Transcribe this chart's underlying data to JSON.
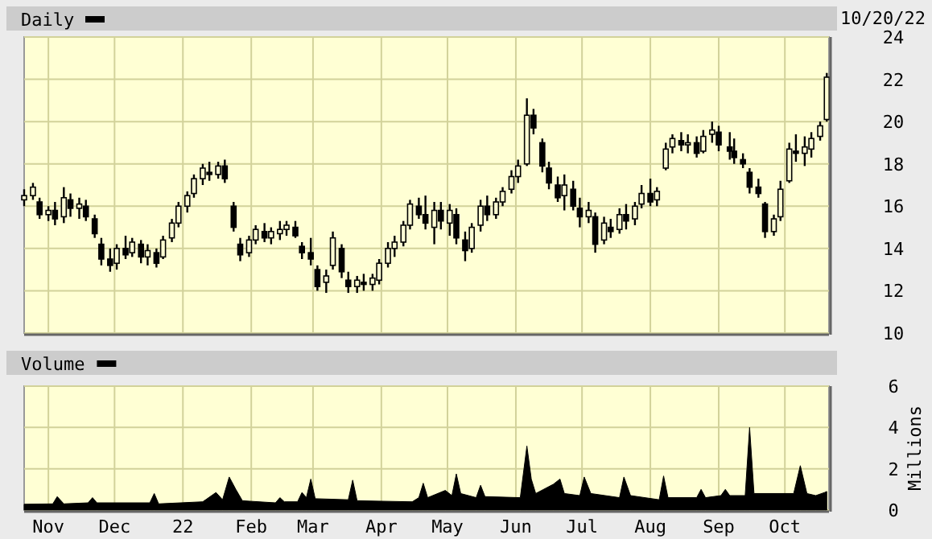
{
  "chart_data": [
    {
      "type": "candlestick",
      "annotations": [
        "10/20/22"
      ],
      "legend": "top left",
      "grid": true,
      "tick_labels": "y",
      "xlim": [
        "2021-10-21",
        "2022-10-21"
      ],
      "xticks": [
        {
          "value": "2021-11-01",
          "label": null
        },
        {
          "value": "2021-12-01",
          "label": null
        },
        {
          "value": "2022-01-01",
          "label": null
        },
        {
          "value": "2022-02-01",
          "label": null
        },
        {
          "value": "2022-03-01",
          "label": null
        },
        {
          "value": "2022-04-01",
          "label": null
        },
        {
          "value": "2022-05-01",
          "label": null
        },
        {
          "value": "2022-06-01",
          "label": null
        },
        {
          "value": "2022-07-01",
          "label": null
        },
        {
          "value": "2022-08-01",
          "label": null
        },
        {
          "value": "2022-09-01",
          "label": null
        },
        {
          "value": "2022-10-01",
          "label": null
        }
      ],
      "ylim": [
        10,
        24
      ],
      "yticks": [
        10,
        12,
        14,
        16,
        18,
        20,
        22,
        24
      ],
      "series": [
        {
          "name": "Daily",
          "color": "#000000",
          "x": [
            "2021-10-21",
            "2021-10-25",
            "2021-10-28",
            "2021-11-01",
            "2021-11-04",
            "2021-11-08",
            "2021-11-11",
            "2021-11-15",
            "2021-11-18",
            "2021-11-22",
            "2021-11-25",
            "2021-11-29",
            "2021-12-02",
            "2021-12-06",
            "2021-12-09",
            "2021-12-13",
            "2021-12-16",
            "2021-12-20",
            "2021-12-23",
            "2021-12-27",
            "2021-12-30",
            "2022-01-03",
            "2022-01-06",
            "2022-01-10",
            "2022-01-13",
            "2022-01-17",
            "2022-01-20",
            "2022-01-24",
            "2022-01-27",
            "2022-01-31",
            "2022-02-03",
            "2022-02-07",
            "2022-02-10",
            "2022-02-14",
            "2022-02-17",
            "2022-02-21",
            "2022-02-24",
            "2022-02-28",
            "2022-03-03",
            "2022-03-07",
            "2022-03-10",
            "2022-03-14",
            "2022-03-17",
            "2022-03-21",
            "2022-03-24",
            "2022-03-28",
            "2022-03-31",
            "2022-04-04",
            "2022-04-07",
            "2022-04-11",
            "2022-04-14",
            "2022-04-18",
            "2022-04-21",
            "2022-04-25",
            "2022-04-28",
            "2022-05-02",
            "2022-05-05",
            "2022-05-09",
            "2022-05-12",
            "2022-05-16",
            "2022-05-19",
            "2022-05-23",
            "2022-05-26",
            "2022-05-30",
            "2022-06-02",
            "2022-06-06",
            "2022-06-09",
            "2022-06-13",
            "2022-06-16",
            "2022-06-20",
            "2022-06-23",
            "2022-06-27",
            "2022-06-30",
            "2022-07-04",
            "2022-07-07",
            "2022-07-11",
            "2022-07-14",
            "2022-07-18",
            "2022-07-21",
            "2022-07-25",
            "2022-07-28",
            "2022-08-01",
            "2022-08-04",
            "2022-08-08",
            "2022-08-11",
            "2022-08-15",
            "2022-08-18",
            "2022-08-22",
            "2022-08-25",
            "2022-08-29",
            "2022-09-01",
            "2022-09-06",
            "2022-09-08",
            "2022-09-12",
            "2022-09-15",
            "2022-09-19",
            "2022-09-22",
            "2022-09-26",
            "2022-09-29",
            "2022-10-03",
            "2022-10-06",
            "2022-10-10",
            "2022-10-13",
            "2022-10-17",
            "2022-10-20"
          ],
          "ohlc": [
            [
              16.3,
              16.8,
              16.0,
              16.5
            ],
            [
              16.5,
              17.1,
              16.3,
              16.9
            ],
            [
              16.2,
              16.4,
              15.4,
              15.6
            ],
            [
              15.6,
              16.0,
              15.3,
              15.8
            ],
            [
              15.8,
              16.2,
              15.1,
              15.4
            ],
            [
              15.5,
              16.9,
              15.2,
              16.4
            ],
            [
              16.3,
              16.6,
              15.5,
              15.9
            ],
            [
              15.9,
              16.4,
              15.4,
              16.1
            ],
            [
              16.0,
              16.3,
              15.3,
              15.5
            ],
            [
              15.4,
              15.6,
              14.5,
              14.7
            ],
            [
              14.2,
              14.5,
              13.2,
              13.5
            ],
            [
              13.5,
              14.0,
              12.9,
              13.2
            ],
            [
              13.3,
              14.2,
              13.0,
              14.0
            ],
            [
              14.0,
              14.6,
              13.5,
              13.7
            ],
            [
              13.8,
              14.5,
              13.6,
              14.3
            ],
            [
              14.2,
              14.4,
              13.3,
              13.6
            ],
            [
              13.6,
              14.2,
              13.2,
              13.9
            ],
            [
              13.8,
              14.0,
              13.1,
              13.3
            ],
            [
              13.6,
              14.6,
              13.5,
              14.4
            ],
            [
              14.5,
              15.4,
              14.3,
              15.2
            ],
            [
              15.2,
              16.2,
              15.0,
              16.0
            ],
            [
              16.0,
              16.7,
              15.7,
              16.5
            ],
            [
              16.6,
              17.5,
              16.4,
              17.3
            ],
            [
              17.3,
              18.0,
              17.0,
              17.8
            ],
            [
              17.6,
              18.1,
              17.2,
              17.5
            ],
            [
              17.5,
              18.1,
              17.3,
              17.9
            ],
            [
              17.9,
              18.2,
              17.1,
              17.3
            ],
            [
              16.0,
              16.2,
              14.8,
              15.0
            ],
            [
              14.2,
              14.5,
              13.4,
              13.7
            ],
            [
              13.8,
              14.6,
              13.6,
              14.4
            ],
            [
              14.4,
              15.1,
              14.2,
              14.9
            ],
            [
              14.8,
              15.2,
              14.3,
              14.5
            ],
            [
              14.5,
              15.0,
              14.2,
              14.8
            ],
            [
              14.7,
              15.3,
              14.4,
              14.9
            ],
            [
              14.9,
              15.3,
              14.6,
              15.1
            ],
            [
              15.0,
              15.3,
              14.5,
              14.6
            ],
            [
              14.1,
              14.3,
              13.5,
              13.8
            ],
            [
              13.8,
              14.5,
              13.2,
              13.5
            ],
            [
              13.0,
              13.2,
              12.0,
              12.2
            ],
            [
              12.4,
              13.0,
              11.9,
              12.7
            ],
            [
              13.2,
              14.8,
              13.0,
              14.5
            ],
            [
              14.0,
              14.2,
              12.6,
              12.9
            ],
            [
              12.5,
              12.9,
              11.9,
              12.2
            ],
            [
              12.2,
              12.7,
              11.9,
              12.5
            ],
            [
              12.4,
              12.8,
              12.0,
              12.3
            ],
            [
              12.3,
              12.8,
              12.0,
              12.6
            ],
            [
              12.5,
              13.5,
              12.3,
              13.3
            ],
            [
              13.3,
              14.3,
              13.1,
              14.0
            ],
            [
              14.0,
              14.6,
              13.6,
              14.3
            ],
            [
              14.3,
              15.3,
              14.1,
              15.1
            ],
            [
              15.1,
              16.3,
              14.9,
              16.1
            ],
            [
              16.0,
              16.4,
              15.4,
              15.6
            ],
            [
              15.6,
              16.5,
              14.9,
              15.2
            ],
            [
              15.0,
              16.2,
              14.2,
              15.8
            ],
            [
              15.8,
              16.2,
              14.9,
              15.3
            ],
            [
              15.2,
              16.1,
              14.6,
              15.8
            ],
            [
              15.6,
              15.9,
              14.2,
              14.5
            ],
            [
              14.4,
              14.8,
              13.4,
              13.9
            ],
            [
              14.0,
              15.2,
              13.8,
              15.0
            ],
            [
              15.1,
              16.3,
              14.8,
              16.0
            ],
            [
              16.0,
              16.5,
              15.3,
              15.6
            ],
            [
              15.6,
              16.4,
              15.4,
              16.2
            ],
            [
              16.2,
              16.9,
              16.0,
              16.7
            ],
            [
              16.8,
              17.7,
              16.6,
              17.4
            ],
            [
              17.4,
              18.2,
              17.1,
              17.9
            ],
            [
              18.0,
              21.1,
              17.9,
              20.3
            ],
            [
              20.3,
              20.6,
              19.4,
              19.7
            ],
            [
              19.0,
              19.2,
              17.6,
              17.9
            ],
            [
              17.8,
              18.1,
              16.8,
              17.1
            ],
            [
              17.0,
              17.4,
              16.2,
              16.4
            ],
            [
              16.5,
              17.5,
              15.8,
              17.0
            ],
            [
              16.8,
              17.2,
              15.8,
              16.0
            ],
            [
              15.9,
              16.4,
              15.0,
              15.5
            ],
            [
              15.5,
              16.2,
              15.2,
              15.8
            ],
            [
              15.5,
              15.7,
              13.8,
              14.2
            ],
            [
              14.4,
              15.5,
              14.2,
              15.2
            ],
            [
              15.0,
              15.4,
              14.5,
              14.8
            ],
            [
              14.9,
              15.9,
              14.7,
              15.6
            ],
            [
              15.6,
              16.1,
              14.9,
              15.3
            ],
            [
              15.4,
              16.2,
              15.1,
              16.0
            ],
            [
              16.1,
              17.0,
              15.9,
              16.6
            ],
            [
              16.6,
              17.3,
              16.0,
              16.2
            ],
            [
              16.3,
              16.9,
              16.0,
              16.7
            ],
            [
              17.8,
              19.0,
              17.7,
              18.7
            ],
            [
              18.8,
              19.4,
              18.5,
              19.2
            ],
            [
              19.1,
              19.5,
              18.6,
              18.9
            ],
            [
              18.9,
              19.4,
              18.5,
              19.0
            ],
            [
              19.0,
              19.3,
              18.3,
              18.5
            ],
            [
              18.6,
              19.6,
              18.5,
              19.3
            ],
            [
              19.4,
              20.0,
              19.0,
              19.6
            ],
            [
              19.5,
              19.8,
              18.6,
              18.9
            ],
            [
              18.8,
              19.5,
              18.2,
              18.6
            ],
            [
              18.6,
              19.2,
              18.0,
              18.3
            ],
            [
              18.2,
              18.5,
              17.8,
              18.0
            ],
            [
              17.6,
              17.8,
              16.6,
              16.9
            ],
            [
              16.9,
              17.3,
              16.4,
              16.6
            ],
            [
              16.1,
              16.2,
              14.5,
              14.8
            ],
            [
              14.8,
              15.6,
              14.6,
              15.4
            ],
            [
              15.5,
              17.2,
              15.3,
              16.8
            ],
            [
              17.2,
              19.0,
              17.1,
              18.7
            ],
            [
              18.6,
              19.4,
              18.1,
              18.5
            ],
            [
              18.5,
              19.3,
              17.9,
              18.8
            ],
            [
              18.7,
              19.5,
              18.3,
              19.2
            ],
            [
              19.3,
              20.0,
              19.1,
              19.8
            ],
            [
              20.1,
              22.3,
              20.0,
              22.1
            ]
          ]
        }
      ]
    },
    {
      "type": "area",
      "ylabel": "Millions",
      "legend": "top left",
      "grid": true,
      "xlim": [
        "2021-10-21",
        "2022-10-21"
      ],
      "xticks": [
        {
          "value": "2021-11-01",
          "label": "Nov"
        },
        {
          "value": "2021-12-01",
          "label": "Dec"
        },
        {
          "value": "2022-01-01",
          "label": "22"
        },
        {
          "value": "2022-02-01",
          "label": "Feb"
        },
        {
          "value": "2022-03-01",
          "label": "Mar"
        },
        {
          "value": "2022-04-01",
          "label": "Apr"
        },
        {
          "value": "2022-05-01",
          "label": "May"
        },
        {
          "value": "2022-06-01",
          "label": "Jun"
        },
        {
          "value": "2022-07-01",
          "label": "Jul"
        },
        {
          "value": "2022-08-01",
          "label": "Aug"
        },
        {
          "value": "2022-09-01",
          "label": "Sep"
        },
        {
          "value": "2022-10-01",
          "label": "Oct"
        }
      ],
      "ylim": [
        0,
        6
      ],
      "yticks": [
        0,
        2,
        4,
        6
      ],
      "series": [
        {
          "name": "Volume",
          "color": "#000000",
          "x": [
            "2021-10-21",
            "2021-11-03",
            "2021-11-05",
            "2021-11-08",
            "2021-11-19",
            "2021-11-21",
            "2021-11-23",
            "2021-12-17",
            "2021-12-19",
            "2021-12-21",
            "2022-01-10",
            "2022-01-16",
            "2022-01-19",
            "2022-01-22",
            "2022-01-25",
            "2022-01-28",
            "2022-02-12",
            "2022-02-14",
            "2022-02-16",
            "2022-02-22",
            "2022-02-24",
            "2022-02-26",
            "2022-02-28",
            "2022-03-02",
            "2022-03-17",
            "2022-03-19",
            "2022-03-21",
            "2022-04-15",
            "2022-04-18",
            "2022-04-20",
            "2022-04-22",
            "2022-04-30",
            "2022-05-03",
            "2022-05-05",
            "2022-05-07",
            "2022-05-14",
            "2022-05-16",
            "2022-05-18",
            "2022-06-03",
            "2022-06-06",
            "2022-06-08",
            "2022-06-10",
            "2022-06-18",
            "2022-06-21",
            "2022-06-23",
            "2022-06-30",
            "2022-07-02",
            "2022-07-05",
            "2022-07-18",
            "2022-07-20",
            "2022-07-23",
            "2022-08-05",
            "2022-08-07",
            "2022-08-09",
            "2022-08-22",
            "2022-08-24",
            "2022-08-26",
            "2022-09-02",
            "2022-09-04",
            "2022-09-06",
            "2022-09-13",
            "2022-09-15",
            "2022-09-17",
            "2022-10-05",
            "2022-10-08",
            "2022-10-11",
            "2022-10-15",
            "2022-10-19",
            "2022-10-20"
          ],
          "values": [
            0.28,
            0.3,
            0.65,
            0.3,
            0.35,
            0.6,
            0.35,
            0.35,
            0.8,
            0.3,
            0.4,
            0.85,
            0.5,
            1.6,
            1.0,
            0.45,
            0.35,
            0.6,
            0.4,
            0.4,
            0.85,
            0.6,
            1.5,
            0.55,
            0.5,
            1.45,
            0.45,
            0.4,
            0.6,
            1.3,
            0.6,
            0.95,
            0.7,
            1.75,
            0.8,
            0.6,
            1.2,
            0.65,
            0.6,
            3.1,
            1.5,
            0.8,
            1.25,
            1.5,
            0.8,
            0.7,
            1.6,
            0.8,
            0.6,
            1.6,
            0.7,
            0.5,
            1.65,
            0.6,
            0.6,
            1.0,
            0.6,
            0.7,
            1.0,
            0.7,
            0.7,
            4.0,
            0.8,
            0.8,
            2.15,
            0.8,
            0.7,
            0.85,
            0.9
          ]
        }
      ]
    }
  ]
}
